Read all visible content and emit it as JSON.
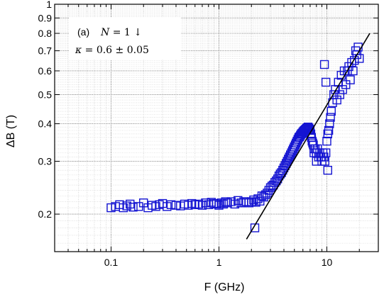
{
  "chart_data": {
    "type": "scatter",
    "xlabel": "F (GHz)",
    "ylabel": "ΔB (T)",
    "xscale": "log",
    "yscale": "log",
    "xlim": [
      0.03,
      30
    ],
    "ylim": [
      0.15,
      1
    ],
    "grid": true,
    "x_ticks": [
      0.1,
      1,
      10
    ],
    "x_tick_labels": [
      "0.1",
      "1",
      "10"
    ],
    "y_ticks": [
      0.2,
      0.3,
      0.4,
      0.5,
      0.6,
      0.7,
      0.8,
      0.9,
      1
    ],
    "y_tick_labels": [
      "0.2",
      "0.3",
      "0.4",
      "0.5",
      "0.6",
      "0.7",
      "0.8",
      "0.9",
      "1"
    ],
    "annotation": {
      "panel": "(a)",
      "line1_symbol": "N",
      "line1_rest": " = 1 ↓",
      "line2_symbol": "κ",
      "line2_rest": " = 0.6 ± 0.05"
    },
    "series": [
      {
        "marker": "open-square",
        "color": "#1414d2",
        "x": [
          0.1,
          0.11,
          0.12,
          0.13,
          0.14,
          0.15,
          0.16,
          0.18,
          0.2,
          0.22,
          0.24,
          0.26,
          0.28,
          0.3,
          0.33,
          0.36,
          0.4,
          0.44,
          0.48,
          0.52,
          0.56,
          0.6,
          0.65,
          0.7,
          0.75,
          0.8,
          0.85,
          0.9,
          0.95,
          1.0,
          1.05,
          1.1,
          1.15,
          1.2,
          1.3,
          1.4,
          1.5,
          1.6,
          1.7,
          1.8,
          1.9,
          2.0,
          2.1,
          2.2,
          2.3,
          2.4,
          2.5,
          2.6,
          2.7,
          2.8,
          2.9,
          3.0,
          3.1,
          3.2,
          3.3,
          3.4,
          3.5,
          3.6,
          3.7,
          3.8,
          3.9,
          4.0,
          4.1,
          4.2,
          4.3,
          4.4,
          4.5,
          4.6,
          4.7,
          4.8,
          4.9,
          5.0,
          5.1,
          5.2,
          5.3,
          5.4,
          5.5,
          5.6,
          5.7,
          5.8,
          5.9,
          6.0,
          6.1,
          6.2,
          6.3,
          6.4,
          6.5,
          6.6,
          6.7,
          6.8,
          6.9,
          7.0,
          7.1,
          7.2,
          7.3,
          7.4,
          7.5,
          7.6,
          7.8,
          8.0,
          8.2,
          8.4,
          8.6,
          8.8,
          9.0,
          9.2,
          9.4,
          9.6,
          9.8,
          10.0,
          10.2,
          10.4,
          10.6,
          10.8,
          11.0,
          11.3,
          11.6,
          12.0,
          12.4,
          12.8,
          13.2,
          13.6,
          14.0,
          14.5,
          15.0,
          15.5,
          16.0,
          16.5,
          17.0,
          17.5,
          18.0,
          18.5,
          19.0,
          19.5,
          20.0,
          2.15,
          7.2,
          7.6,
          8.0,
          9.5,
          9.8,
          10.2
        ],
        "y": [
          0.21,
          0.212,
          0.215,
          0.21,
          0.213,
          0.216,
          0.211,
          0.212,
          0.218,
          0.21,
          0.214,
          0.212,
          0.215,
          0.217,
          0.212,
          0.215,
          0.214,
          0.213,
          0.216,
          0.214,
          0.217,
          0.215,
          0.216,
          0.214,
          0.218,
          0.215,
          0.219,
          0.217,
          0.216,
          0.214,
          0.218,
          0.216,
          0.22,
          0.218,
          0.22,
          0.216,
          0.222,
          0.218,
          0.22,
          0.22,
          0.218,
          0.22,
          0.223,
          0.219,
          0.225,
          0.221,
          0.23,
          0.228,
          0.232,
          0.235,
          0.24,
          0.245,
          0.248,
          0.25,
          0.255,
          0.258,
          0.262,
          0.268,
          0.272,
          0.275,
          0.28,
          0.285,
          0.29,
          0.295,
          0.3,
          0.305,
          0.31,
          0.315,
          0.32,
          0.325,
          0.33,
          0.335,
          0.34,
          0.345,
          0.35,
          0.355,
          0.36,
          0.362,
          0.366,
          0.37,
          0.372,
          0.375,
          0.378,
          0.38,
          0.382,
          0.384,
          0.386,
          0.388,
          0.39,
          0.387,
          0.384,
          0.38,
          0.37,
          0.36,
          0.35,
          0.345,
          0.34,
          0.33,
          0.33,
          0.32,
          0.33,
          0.31,
          0.32,
          0.31,
          0.3,
          0.32,
          0.31,
          0.3,
          0.32,
          0.35,
          0.37,
          0.38,
          0.4,
          0.42,
          0.44,
          0.47,
          0.5,
          0.52,
          0.48,
          0.55,
          0.5,
          0.58,
          0.52,
          0.6,
          0.54,
          0.6,
          0.62,
          0.56,
          0.64,
          0.6,
          0.65,
          0.7,
          0.68,
          0.72,
          0.66,
          0.18,
          0.36,
          0.32,
          0.3,
          0.63,
          0.55,
          0.28
        ]
      }
    ],
    "fit_line": {
      "color": "#000000",
      "x": [
        1.8,
        25
      ],
      "y": [
        0.165,
        0.8
      ]
    }
  }
}
